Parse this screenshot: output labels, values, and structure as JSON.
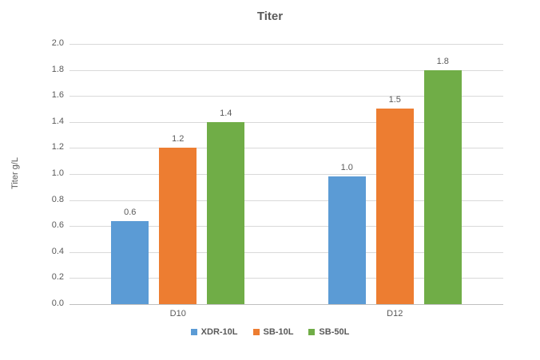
{
  "chart_data": {
    "type": "bar",
    "title": "Titer",
    "ylabel": "Titer g/L",
    "categories": [
      "D10",
      "D12"
    ],
    "series": [
      {
        "name": "XDR-10L",
        "color": "#5B9BD5",
        "values": [
          0.64,
          0.98
        ],
        "labels": [
          "0.6",
          "1.0"
        ]
      },
      {
        "name": "SB-10L",
        "color": "#ED7D31",
        "values": [
          1.2,
          1.5
        ],
        "labels": [
          "1.2",
          "1.5"
        ]
      },
      {
        "name": "SB-50L",
        "color": "#70AD47",
        "values": [
          1.4,
          1.8
        ],
        "labels": [
          "1.4",
          "1.8"
        ]
      }
    ],
    "ylim": [
      0.0,
      2.0
    ],
    "ytick_step": 0.2,
    "ytick_labels": [
      "0.0",
      "0.2",
      "0.4",
      "0.6",
      "0.8",
      "1.0",
      "1.2",
      "1.4",
      "1.6",
      "1.8",
      "2.0"
    ],
    "grid": true,
    "legend_position": "bottom",
    "colors": {
      "gridline": "#D9D9D9",
      "axis_line": "#BFBFBF",
      "text": "#595959",
      "background": "#FFFFFF"
    }
  }
}
